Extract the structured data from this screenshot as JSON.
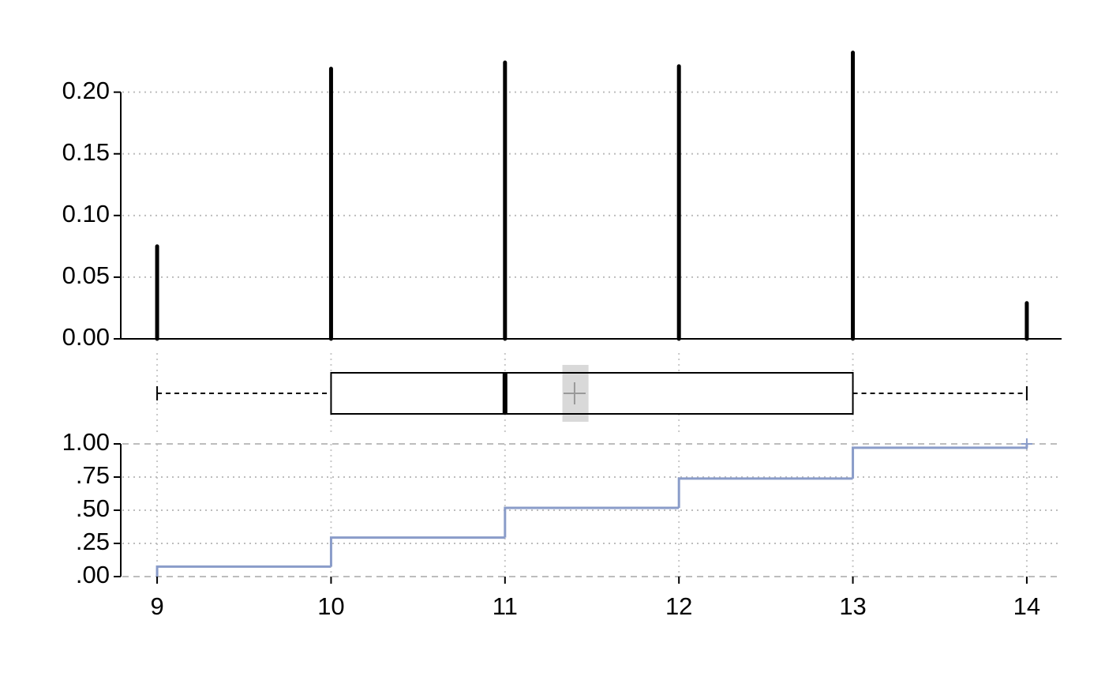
{
  "chart_data": [
    {
      "type": "needle",
      "x": [
        9,
        10,
        11,
        12,
        13,
        14
      ],
      "values": [
        0.075,
        0.219,
        0.224,
        0.221,
        0.232,
        0.029
      ],
      "color": "#000000",
      "xlim": [
        8.8,
        14.2
      ],
      "ylim": [
        0,
        0.235
      ],
      "yticks": [
        {
          "value": 0,
          "label": "0.00"
        },
        {
          "value": 0.05,
          "label": "0.05"
        },
        {
          "value": 0.1,
          "label": "0.10"
        },
        {
          "value": 0.15,
          "label": "0.15"
        },
        {
          "value": 0.2,
          "label": "0.20"
        }
      ],
      "grid": true
    },
    {
      "type": "box",
      "min": 9,
      "q1": 10,
      "median": 11,
      "q3": 13,
      "max": 14,
      "mean": 11.4,
      "mean_ci": [
        11.33,
        11.48
      ],
      "xlim": [
        8.8,
        14.2
      ],
      "color": "#000000",
      "mean_color": "#999999",
      "ci_color": "#d9d9d9"
    },
    {
      "type": "ecdf",
      "x": [
        9,
        10,
        11,
        12,
        13,
        14
      ],
      "values": [
        0.075,
        0.294,
        0.518,
        0.739,
        0.971,
        1.0
      ],
      "color": "#8a9cc9",
      "xlim": [
        8.8,
        14.2
      ],
      "ylim": [
        0,
        1
      ],
      "xticks": [
        9,
        10,
        11,
        12,
        13,
        14
      ],
      "yticks": [
        {
          "value": 0,
          "label": ".00"
        },
        {
          "value": 0.25,
          "label": ".25"
        },
        {
          "value": 0.5,
          "label": ".50"
        },
        {
          "value": 0.75,
          "label": ".75"
        },
        {
          "value": 1,
          "label": "1.00"
        }
      ],
      "grid": true
    }
  ]
}
